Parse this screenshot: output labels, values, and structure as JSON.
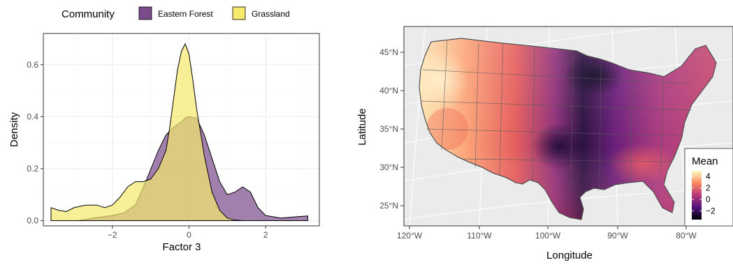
{
  "legend": {
    "title": "Community",
    "entries": [
      {
        "label": "Eastern Forest",
        "color": "#7b4a8b"
      },
      {
        "label": "Grassland",
        "color": "#f5e96e"
      }
    ]
  },
  "chart_data": [
    {
      "type": "area",
      "xlabel": "Factor 3",
      "ylabel": "Density",
      "xlim": [
        -3.8,
        3.4
      ],
      "ylim": [
        -0.02,
        0.72
      ],
      "xticks": [
        -2,
        0,
        2
      ],
      "yticks": [
        0.0,
        0.2,
        0.4,
        0.6
      ],
      "ytick_labels": [
        "0.0",
        "0.2",
        "0.4",
        "0.6"
      ],
      "xtick_labels": [
        "−2",
        "0",
        "2"
      ],
      "grid": true,
      "legend_position": "top",
      "series": [
        {
          "name": "Eastern Forest",
          "color": "#7b4a8b",
          "x": [
            -2.9,
            -2.5,
            -2.0,
            -1.7,
            -1.4,
            -1.1,
            -0.8,
            -0.6,
            -0.4,
            -0.2,
            -0.1,
            0.0,
            0.2,
            0.4,
            0.6,
            0.8,
            1.0,
            1.2,
            1.4,
            1.6,
            1.8,
            2.0,
            2.4,
            2.8,
            3.1
          ],
          "y": [
            0.0,
            0.01,
            0.02,
            0.03,
            0.06,
            0.16,
            0.27,
            0.33,
            0.36,
            0.38,
            0.395,
            0.4,
            0.395,
            0.33,
            0.24,
            0.15,
            0.1,
            0.11,
            0.13,
            0.11,
            0.05,
            0.02,
            0.01,
            0.015,
            0.018
          ]
        },
        {
          "name": "Grassland",
          "color": "#f5e96e",
          "x": [
            -3.6,
            -3.4,
            -3.2,
            -3.0,
            -2.7,
            -2.4,
            -2.2,
            -2.0,
            -1.8,
            -1.6,
            -1.4,
            -1.2,
            -1.0,
            -0.8,
            -0.6,
            -0.5,
            -0.4,
            -0.3,
            -0.2,
            -0.1,
            0.0,
            0.1,
            0.2,
            0.4,
            0.6,
            0.8,
            1.0,
            1.2,
            1.4,
            1.6,
            1.8,
            2.0
          ],
          "y": [
            0.05,
            0.04,
            0.035,
            0.05,
            0.06,
            0.06,
            0.05,
            0.06,
            0.09,
            0.13,
            0.15,
            0.15,
            0.16,
            0.2,
            0.27,
            0.36,
            0.47,
            0.58,
            0.65,
            0.68,
            0.64,
            0.54,
            0.43,
            0.25,
            0.11,
            0.04,
            0.01,
            0.002,
            0.0,
            0.0,
            0.0,
            0.0
          ]
        }
      ]
    },
    {
      "type": "heatmap",
      "xlabel": "Longitude",
      "ylabel": "Latitude",
      "xtick_labels": [
        "120°W",
        "110°W",
        "100°W",
        "90°W",
        "80°W"
      ],
      "ytick_labels": [
        "25°N",
        "30°N",
        "35°N",
        "40°N",
        "45°N"
      ],
      "grid": true,
      "colorbar": {
        "title": "Mean",
        "ticks": [
          4,
          2,
          0,
          -2
        ],
        "tick_labels": [
          "4",
          "2",
          "0",
          "−2"
        ],
        "range": [
          -3.5,
          5
        ],
        "legend_position": "right"
      }
    }
  ]
}
